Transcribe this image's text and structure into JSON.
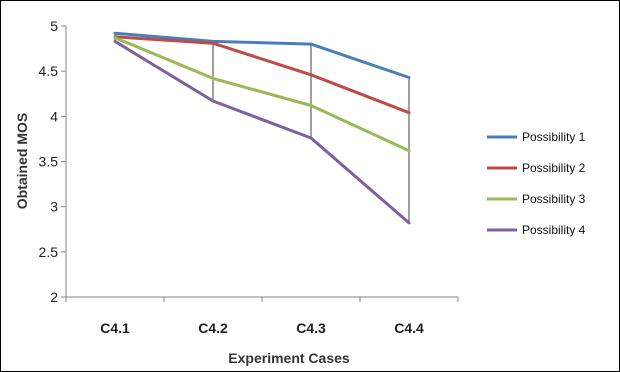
{
  "chart_data": {
    "type": "line",
    "title": "",
    "xlabel": "Experiment Cases",
    "ylabel": "Obtained MOS",
    "categories": [
      "C4.1",
      "C4.2",
      "C4.3",
      "C4.4"
    ],
    "ylim": [
      2,
      5
    ],
    "yticks": [
      "2",
      "2.5",
      "3",
      "3.5",
      "4",
      "4.5",
      "5"
    ],
    "grid": false,
    "drop_lines": true,
    "legend_position": "right",
    "series": [
      {
        "name": "Possibility 1",
        "color": "#4A7EBB",
        "values": [
          4.92,
          4.83,
          4.8,
          4.43
        ]
      },
      {
        "name": "Possibility 2",
        "color": "#BE4B48",
        "values": [
          4.88,
          4.81,
          4.46,
          4.04
        ]
      },
      {
        "name": "Possibility 3",
        "color": "#98B954",
        "values": [
          4.87,
          4.42,
          4.12,
          3.62
        ]
      },
      {
        "name": "Possibility 4",
        "color": "#7D60A0",
        "values": [
          4.83,
          4.17,
          3.76,
          2.82
        ]
      }
    ]
  }
}
